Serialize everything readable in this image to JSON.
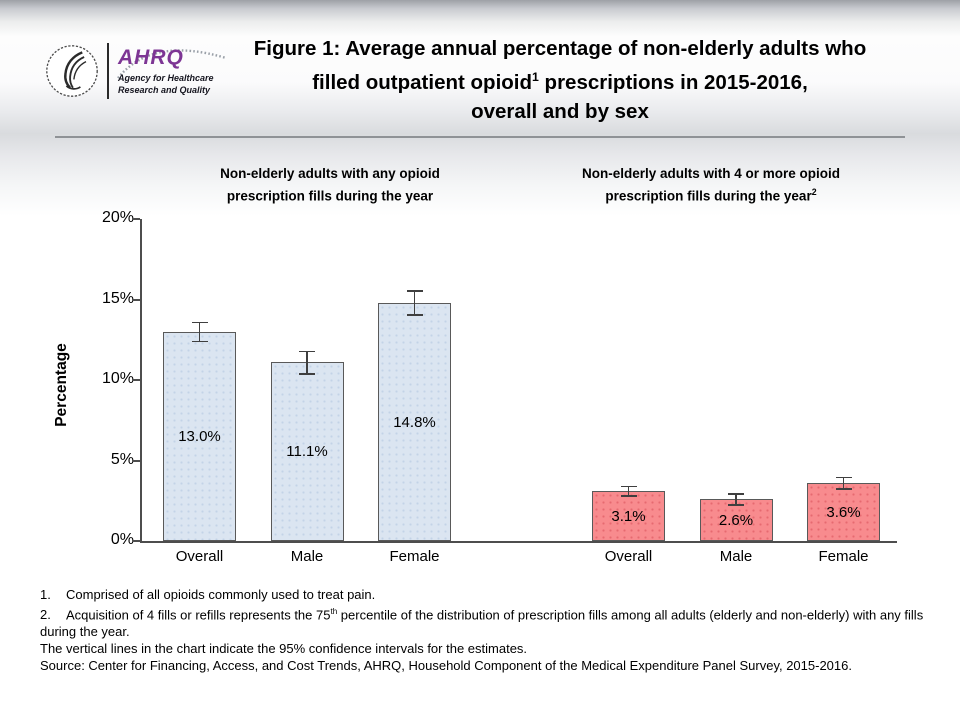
{
  "slide": {
    "title": {
      "line1": "Figure 1: Average annual percentage of non-elderly adults who",
      "line2_pre": "filled outpatient opioid",
      "line2_sup": "1",
      "line2_post": " prescriptions in 2015-2016,",
      "line3": "overall and by sex"
    },
    "logo": {
      "ahrq": "AHRQ",
      "tagline1": "Agency for Healthcare",
      "tagline2": "Research and Quality"
    }
  },
  "chart_data": {
    "type": "bar",
    "ylabel": "Percentage",
    "ylim": [
      0,
      20
    ],
    "ytick_values": [
      0,
      5,
      10,
      15,
      20
    ],
    "ytick_labels": [
      "0%",
      "5%",
      "10%",
      "15%",
      "20%"
    ],
    "legend": "none",
    "grid": "off",
    "groups": [
      {
        "subtitle_line1": "Non-elderly adults with any opioid",
        "subtitle_line2": "prescription fills during the year",
        "subtitle_sup": "",
        "categories": [
          "Overall",
          "Male",
          "Female"
        ],
        "values": [
          13.0,
          11.1,
          14.8
        ],
        "value_labels": [
          "13.0%",
          "11.1%",
          "14.8%"
        ],
        "ci": [
          0.6,
          0.7,
          0.75
        ],
        "bar_fill": "#dbe5f1",
        "bar_dot": "#c3d3e7"
      },
      {
        "subtitle_line1": "Non-elderly adults with 4 or more opioid",
        "subtitle_line2": "prescription fills during the year",
        "subtitle_sup": "2",
        "categories": [
          "Overall",
          "Male",
          "Female"
        ],
        "values": [
          3.1,
          2.6,
          3.6
        ],
        "value_labels": [
          "3.1%",
          "2.6%",
          "3.6%"
        ],
        "ci": [
          0.3,
          0.35,
          0.35
        ],
        "bar_fill": "#f88b8e",
        "bar_dot": "#e66a70"
      }
    ]
  },
  "footnotes": {
    "note1_num": "1.",
    "note1_text": "Comprised of all opioids commonly used to treat pain.",
    "note2_num": "2.",
    "note2_pre": "Acquisition of 4 fills or refills represents the 75",
    "note2_sup": "th",
    "note2_post": " percentile of the distribution of prescription fills among all adults (elderly and non-elderly) with any fills during the year.",
    "note3": "The vertical lines in the chart indicate the 95% confidence intervals for the estimates.",
    "source": "Source: Center for Financing, Access, and Cost Trends, AHRQ, Household Component of the Medical Expenditure Panel Survey, 2015-2016."
  },
  "colors": {
    "axis": "#4d4d4d",
    "bar_border": "#595959",
    "error_bar": "#3f3f3f",
    "group1_fill": "#dbe5f1",
    "group2_fill": "#f88b8e",
    "ahrq_purple": "#7d3594",
    "header_rule": "#8f9296"
  }
}
